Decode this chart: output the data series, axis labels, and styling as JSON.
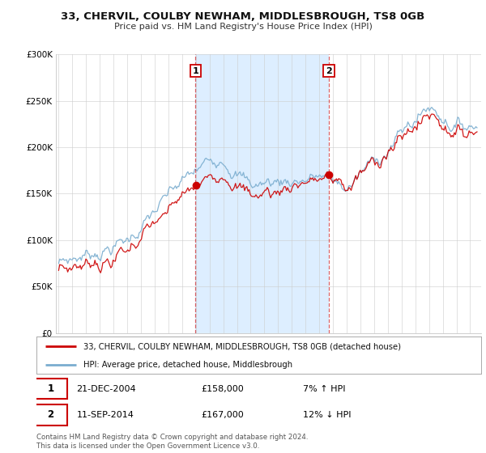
{
  "title": "33, CHERVIL, COULBY NEWHAM, MIDDLESBROUGH, TS8 0GB",
  "subtitle": "Price paid vs. HM Land Registry's House Price Index (HPI)",
  "background_color": "#ffffff",
  "plot_bg_color": "#ffffff",
  "shade_color": "#ddeeff",
  "legend_line1": "33, CHERVIL, COULBY NEWHAM, MIDDLESBROUGH, TS8 0GB (detached house)",
  "legend_line2": "HPI: Average price, detached house, Middlesbrough",
  "sale1_date": "21-DEC-2004",
  "sale1_price": "£158,000",
  "sale1_hpi": "7% ↑ HPI",
  "sale1_year": 2004.97,
  "sale1_value": 158000,
  "sale2_date": "11-SEP-2014",
  "sale2_price": "£167,000",
  "sale2_hpi": "12% ↓ HPI",
  "sale2_year": 2014.7,
  "sale2_value": 167000,
  "red_color": "#cc0000",
  "blue_color": "#7aadcf",
  "vline_color": "#cc0000",
  "copyright_text": "Contains HM Land Registry data © Crown copyright and database right 2024.\nThis data is licensed under the Open Government Licence v3.0.",
  "ylim": [
    0,
    300000
  ],
  "xlim_start": 1994.8,
  "xlim_end": 2025.8
}
